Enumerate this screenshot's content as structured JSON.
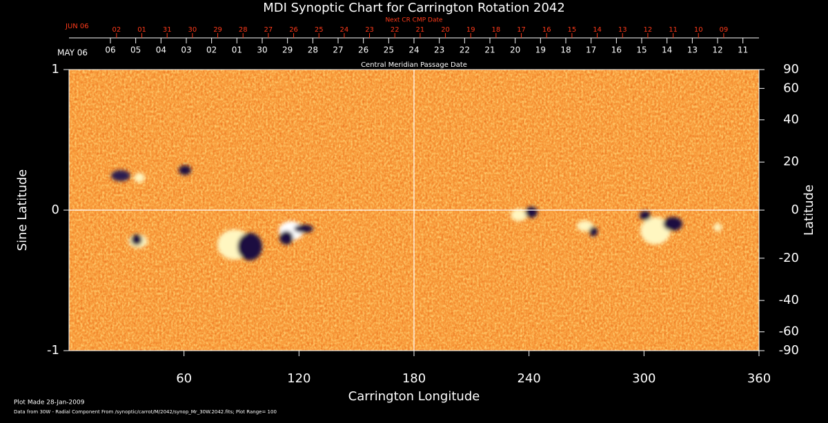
{
  "chart_data": {
    "type": "heatmap",
    "title": "MDI Synoptic Chart for Carrington Rotation 2042",
    "xlabel": "Carrington Longitude",
    "ylabel": "Sine Latitude",
    "y2label": "Latitude",
    "xlim": [
      0,
      360
    ],
    "xticks": [
      60,
      120,
      180,
      240,
      300,
      360
    ],
    "ylim": [
      -1,
      1
    ],
    "yticks": [
      -1,
      0,
      1
    ],
    "y2ticks": [
      90,
      60,
      40,
      20,
      0,
      -20,
      -40,
      -60,
      -90
    ],
    "center_lines": {
      "x": 180,
      "y": 0
    },
    "cmp_axis": {
      "title": "Central Meridian Passage Date",
      "month_label": "MAY 06",
      "labels": [
        "06",
        "05",
        "04",
        "03",
        "02",
        "01",
        "30",
        "29",
        "28",
        "27",
        "26",
        "25",
        "24",
        "23",
        "22",
        "21",
        "20",
        "19",
        "18",
        "17",
        "16",
        "15",
        "14",
        "13",
        "12",
        "11"
      ],
      "lon": [
        21.6,
        34.8,
        48.0,
        61.2,
        74.4,
        87.6,
        100.8,
        114.0,
        127.2,
        140.4,
        153.6,
        166.8,
        180.0,
        193.2,
        206.4,
        219.6,
        232.8,
        246.0,
        259.2,
        272.4,
        285.6,
        298.8,
        312.0,
        325.2,
        338.4,
        351.6
      ]
    },
    "next_axis": {
      "title": "Next CR CMP Date",
      "month_label": "JUN 06",
      "labels": [
        "02",
        "01",
        "31",
        "30",
        "29",
        "28",
        "27",
        "26",
        "25",
        "24",
        "23",
        "22",
        "21",
        "20",
        "19",
        "18",
        "17",
        "16",
        "15",
        "14",
        "13",
        "12",
        "11",
        "10",
        "09"
      ],
      "lon": [
        24.8,
        38.0,
        51.2,
        64.4,
        77.6,
        90.8,
        104.0,
        117.2,
        130.4,
        143.6,
        156.8,
        170.0,
        183.2,
        196.4,
        209.6,
        222.8,
        236.0,
        249.2,
        262.4,
        275.6,
        288.8,
        302.0,
        315.2,
        328.4,
        341.6
      ]
    },
    "footer": {
      "made": "Plot Made 28-Jan-2009",
      "source": "Data from 30W - Radial Component From /synoptic/carrot/M/2042/synop_Mr_30W.2042.fits; Plot Range=  100"
    }
  }
}
